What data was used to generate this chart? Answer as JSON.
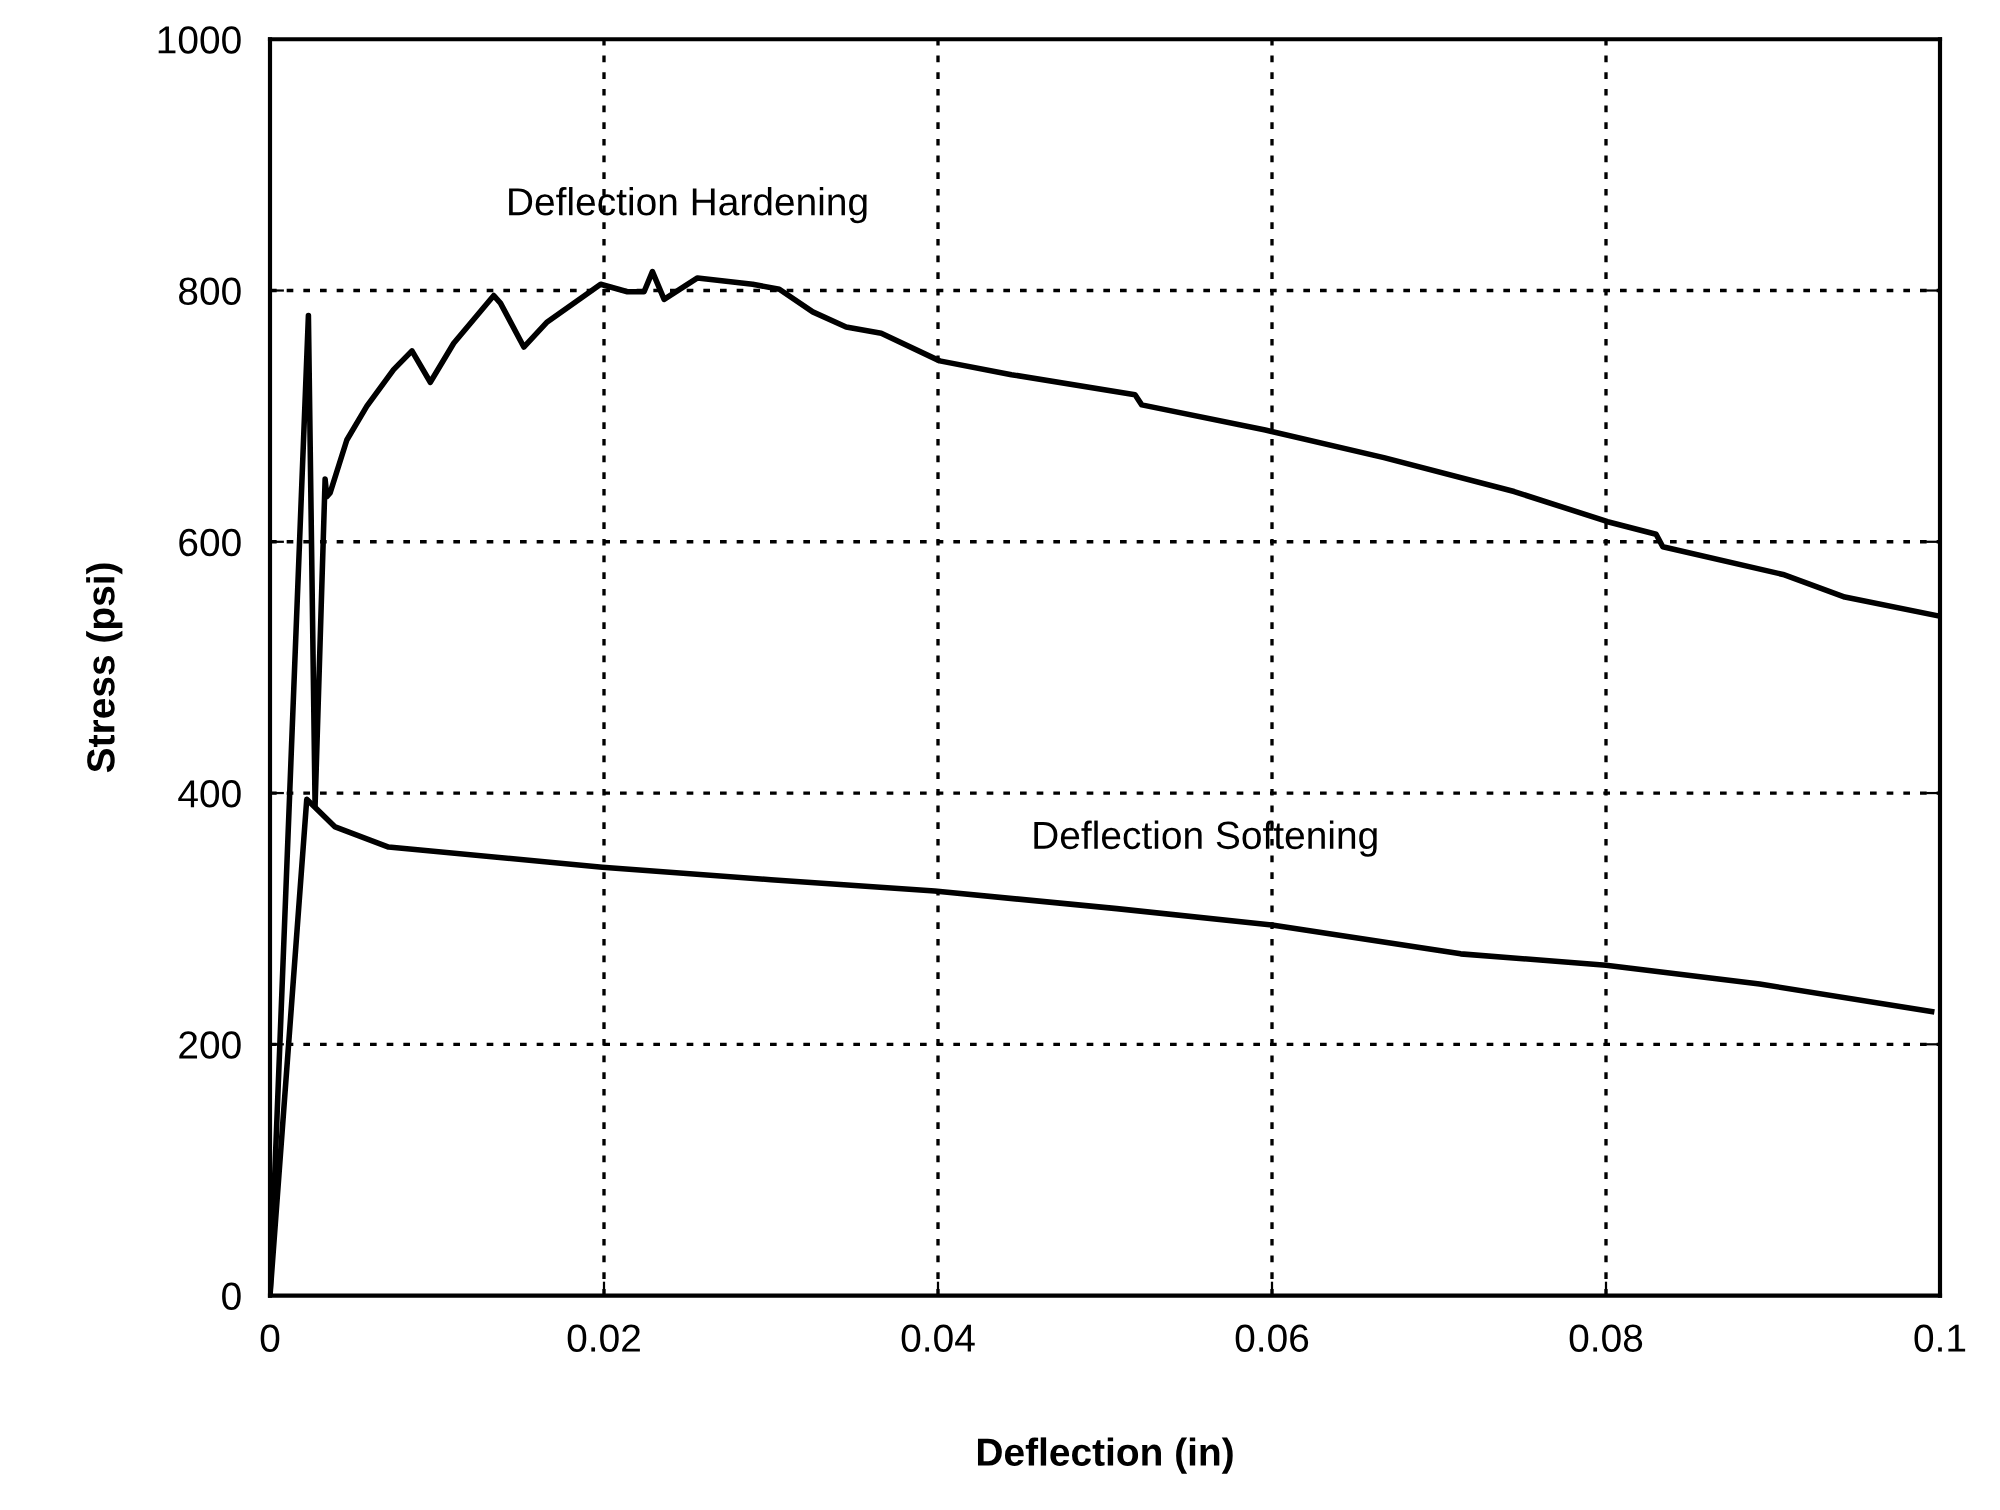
{
  "chart_data": {
    "type": "line",
    "xlabel": "Deflection (in)",
    "ylabel": "Stress (psi)",
    "xlim": [
      0,
      0.1
    ],
    "xticks": [
      0,
      0.02,
      0.04,
      0.06,
      0.08,
      0.1
    ],
    "ylim": [
      0,
      1000
    ],
    "yticks": [
      0,
      200,
      400,
      600,
      800,
      1000
    ],
    "grid": true,
    "marker": "none",
    "line_style": "solid",
    "series": [
      {
        "name": "Deflection Hardening",
        "color": "#000000",
        "x": [
          0,
          0.0023,
          0.0027,
          0.0033,
          0.0034,
          0.0036,
          0.0046,
          0.0058,
          0.0074,
          0.0085,
          0.0096,
          0.011,
          0.0134,
          0.0138,
          0.0152,
          0.0166,
          0.0198,
          0.0214,
          0.0224,
          0.0229,
          0.0236,
          0.0256,
          0.0289,
          0.0305,
          0.0325,
          0.0345,
          0.0366,
          0.0401,
          0.0444,
          0.0518,
          0.0522,
          0.0596,
          0.0667,
          0.0745,
          0.0801,
          0.083,
          0.0834,
          0.0906,
          0.0943,
          0.0999
        ],
        "values": [
          0,
          780,
          390,
          650,
          636,
          639,
          681,
          708,
          737,
          752,
          727,
          758,
          796,
          790,
          755,
          775,
          805,
          799,
          799,
          815,
          793,
          810,
          805,
          801,
          783,
          771,
          766,
          744,
          733,
          717,
          709,
          689,
          667,
          640,
          616,
          606,
          596,
          574,
          556,
          541
        ]
      },
      {
        "name": "Deflection Softening",
        "color": "#000000",
        "x": [
          0,
          0.0022,
          0.0039,
          0.0071,
          0.0199,
          0.03,
          0.0398,
          0.0507,
          0.06,
          0.0713,
          0.08,
          0.0892,
          0.0995
        ],
        "values": [
          0,
          395,
          373,
          357,
          341,
          331,
          322,
          308,
          295,
          272,
          263,
          248,
          226
        ]
      }
    ]
  }
}
